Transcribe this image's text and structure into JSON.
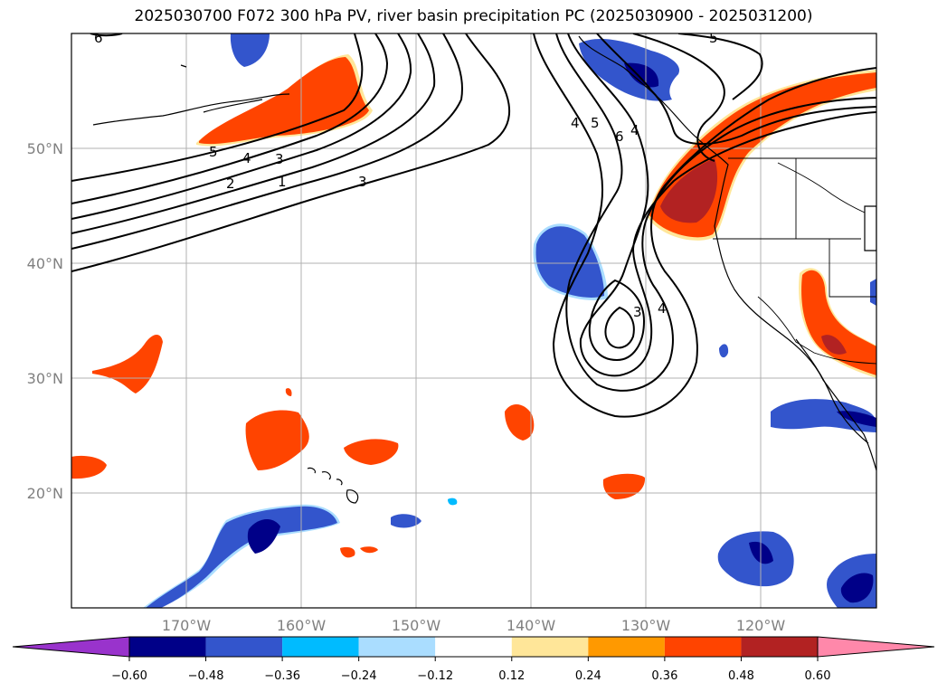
{
  "title": "2025030700 F072 300 hPa PV, river basin precipitation PC (2025030900 - 2025031200)",
  "map": {
    "lon_range": [
      -180,
      -110
    ],
    "lat_range": [
      10,
      60
    ],
    "lat_labels": [
      "50°N",
      "40°N",
      "30°N",
      "20°N"
    ],
    "lon_labels": [
      "170°W",
      "160°W",
      "150°W",
      "140°W",
      "130°W",
      "120°W"
    ],
    "contour_labels": [
      "6",
      "5",
      "4",
      "3",
      "2",
      "1",
      "3",
      "4",
      "5",
      "6",
      "4",
      "5",
      "3",
      "4"
    ]
  },
  "colorbar": {
    "ticks": [
      "−0.60",
      "−0.48",
      "−0.36",
      "−0.24",
      "−0.12",
      "0.12",
      "0.24",
      "0.36",
      "0.48",
      "0.60"
    ],
    "colors": [
      "#9933cc",
      "#000088",
      "#3355cc",
      "#00bbff",
      "#aaddff",
      "#ffffff",
      "#ffe699",
      "#ff9900",
      "#ff4400",
      "#b22222",
      "#ff88aa"
    ]
  }
}
